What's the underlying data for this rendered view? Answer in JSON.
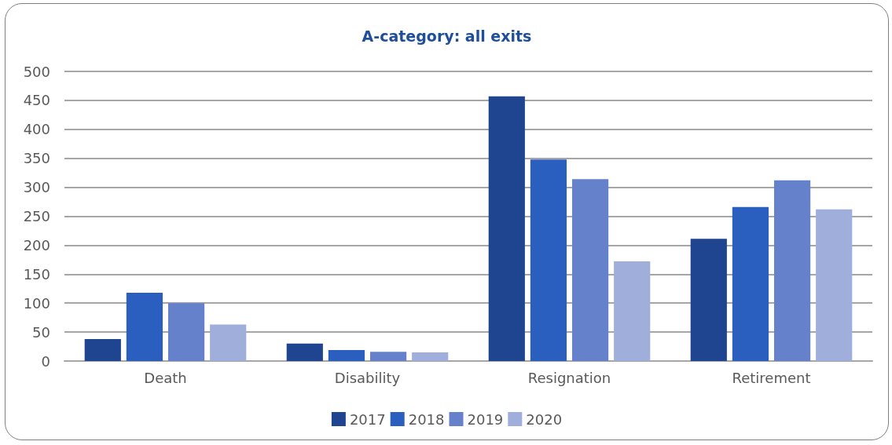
{
  "chart_data": {
    "type": "bar",
    "title": "A-category: all exits",
    "categories": [
      "Death",
      "Disability",
      "Resignation",
      "Retirement"
    ],
    "series": [
      {
        "name": "2017",
        "color": "#1f4590",
        "values": [
          38,
          30,
          457,
          211
        ]
      },
      {
        "name": "2018",
        "color": "#2a5fc0",
        "values": [
          118,
          19,
          348,
          266
        ]
      },
      {
        "name": "2019",
        "color": "#6581cc",
        "values": [
          100,
          16,
          314,
          312
        ]
      },
      {
        "name": "2020",
        "color": "#a0aedb",
        "values": [
          63,
          15,
          172,
          262
        ]
      }
    ],
    "ylim": [
      0,
      500
    ],
    "yticks": [
      0,
      50,
      100,
      150,
      200,
      250,
      300,
      350,
      400,
      450,
      500
    ],
    "grid": "y",
    "legend": "bottom"
  }
}
